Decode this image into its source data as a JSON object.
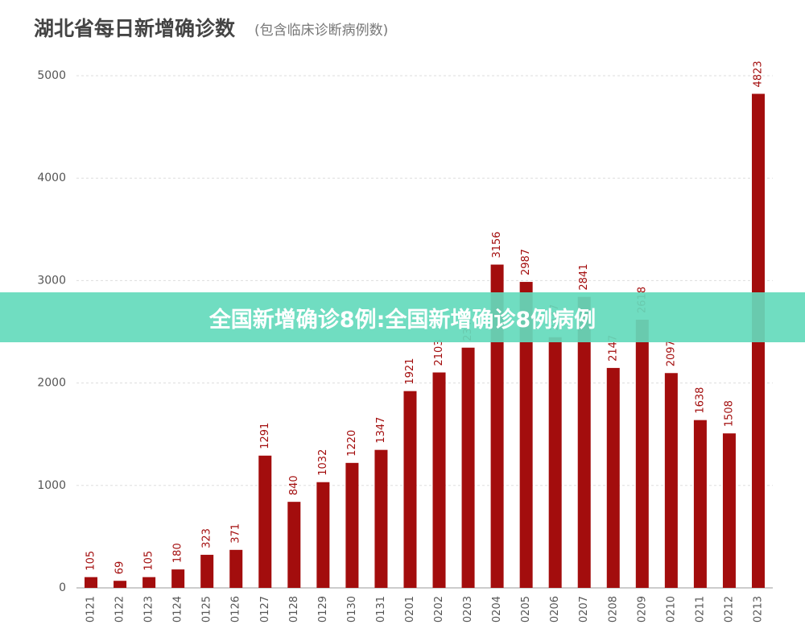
{
  "chart_data": {
    "type": "bar",
    "title": "湖北省每日新增确诊数",
    "subtitle": "(包含临床诊断病例数)",
    "categories": [
      "0121",
      "0122",
      "0123",
      "0124",
      "0125",
      "0126",
      "0127",
      "0128",
      "0129",
      "0130",
      "0131",
      "0201",
      "0202",
      "0203",
      "0204",
      "0205",
      "0206",
      "0207",
      "0208",
      "0209",
      "0210",
      "0211",
      "0212",
      "0213"
    ],
    "values": [
      105,
      69,
      105,
      180,
      323,
      371,
      1291,
      840,
      1032,
      1220,
      1347,
      1921,
      2103,
      2345,
      3156,
      2987,
      2447,
      2841,
      2147,
      2618,
      2097,
      1638,
      1508,
      4823
    ],
    "color": "#a30d0d",
    "ylim": [
      0,
      5000
    ],
    "yticks": [
      0,
      1000,
      2000,
      3000,
      4000,
      5000
    ],
    "grid": true
  },
  "banner": {
    "text": "全国新增确诊8例:全国新增确诊8例病例"
  }
}
